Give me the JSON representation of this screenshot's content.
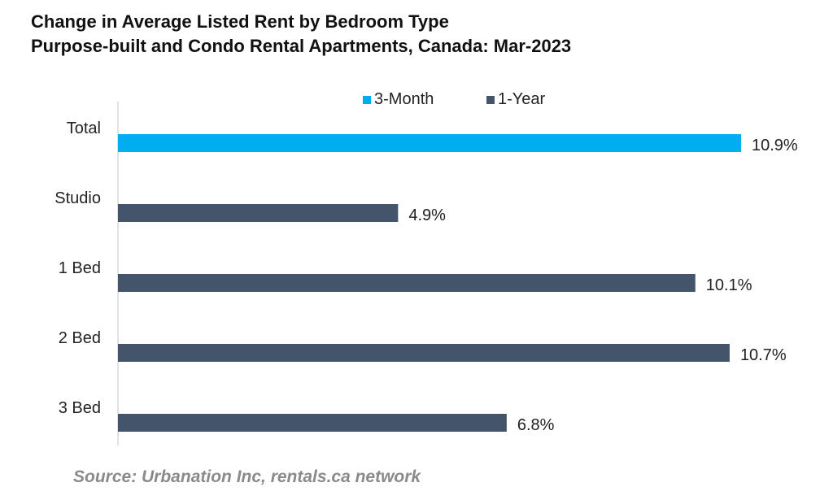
{
  "title_line1": "Change in Average Listed Rent by Bedroom Type",
  "title_line2": "Purpose-built and Condo Rental Apartments, Canada: Mar-2023",
  "source": "Source: Urbanation Inc, rentals.ca network",
  "chart_data": {
    "type": "bar",
    "orientation": "horizontal",
    "categories": [
      "Total",
      "Studio",
      "1 Bed",
      "2 Bed",
      "3 Bed"
    ],
    "series": [
      {
        "name": "3-Month",
        "color": "#00aeef"
      },
      {
        "name": "1-Year",
        "color": "#44546a"
      }
    ],
    "bars": [
      {
        "category": "Total",
        "series": "3-Month",
        "value": 10.9,
        "label": "10.9%"
      },
      {
        "category": "Studio",
        "series": "1-Year",
        "value": 4.9,
        "label": "4.9%"
      },
      {
        "category": "1 Bed",
        "series": "1-Year",
        "value": 10.1,
        "label": "10.1%"
      },
      {
        "category": "2 Bed",
        "series": "1-Year",
        "value": 10.7,
        "label": "10.7%"
      },
      {
        "category": "3 Bed",
        "series": "1-Year",
        "value": 6.8,
        "label": "6.8%"
      }
    ],
    "xlim": [
      0,
      12
    ],
    "legend_position": "top",
    "grid": false,
    "axis_line_color": "#d9d9d9",
    "label_color": "#222222"
  }
}
